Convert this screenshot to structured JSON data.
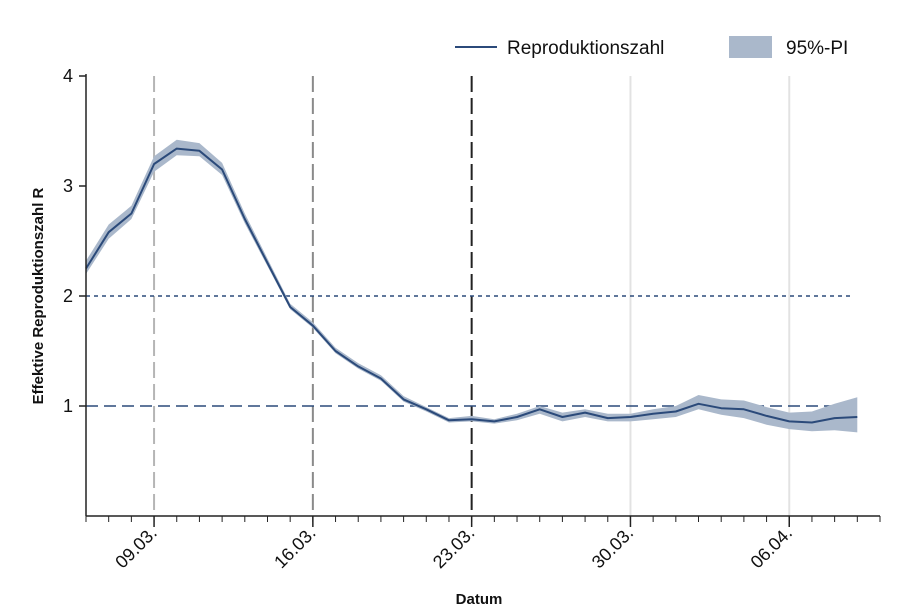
{
  "chart_data": {
    "type": "line",
    "title": "",
    "xlabel": "Datum",
    "ylabel": "Effektive Reproduktionszahl R",
    "ylim": [
      0,
      4
    ],
    "yticks": [
      "1",
      "2",
      "3",
      "4"
    ],
    "xticks": [
      {
        "date": "2020-03-09",
        "label": "09.03."
      },
      {
        "date": "2020-03-16",
        "label": "16.03."
      },
      {
        "date": "2020-03-23",
        "label": "23.03."
      },
      {
        "date": "2020-03-30",
        "label": "30.03."
      },
      {
        "date": "2020-04-06",
        "label": "06.04."
      }
    ],
    "xlim": [
      "2020-03-06",
      "2020-04-10"
    ],
    "x": [
      "2020-03-06",
      "2020-03-07",
      "2020-03-08",
      "2020-03-09",
      "2020-03-10",
      "2020-03-11",
      "2020-03-12",
      "2020-03-13",
      "2020-03-14",
      "2020-03-15",
      "2020-03-16",
      "2020-03-17",
      "2020-03-18",
      "2020-03-19",
      "2020-03-20",
      "2020-03-21",
      "2020-03-22",
      "2020-03-23",
      "2020-03-24",
      "2020-03-25",
      "2020-03-26",
      "2020-03-27",
      "2020-03-28",
      "2020-03-29",
      "2020-03-30",
      "2020-03-31",
      "2020-04-01",
      "2020-04-02",
      "2020-04-03",
      "2020-04-04",
      "2020-04-05",
      "2020-04-06",
      "2020-04-07",
      "2020-04-08",
      "2020-04-09"
    ],
    "series": [
      {
        "name": "Reproduktionszahl",
        "color": "#2b4a7a",
        "values": [
          2.25,
          2.58,
          2.75,
          3.2,
          3.34,
          3.32,
          3.15,
          2.7,
          2.3,
          1.9,
          1.73,
          1.5,
          1.36,
          1.25,
          1.06,
          0.97,
          0.87,
          0.88,
          0.86,
          0.9,
          0.97,
          0.9,
          0.94,
          0.89,
          0.9,
          0.93,
          0.95,
          1.02,
          0.98,
          0.97,
          0.91,
          0.86,
          0.85,
          0.89,
          0.9
        ],
        "lower": [
          2.2,
          2.52,
          2.7,
          3.13,
          3.28,
          3.27,
          3.1,
          2.66,
          2.27,
          1.88,
          1.71,
          1.48,
          1.34,
          1.23,
          1.04,
          0.95,
          0.85,
          0.86,
          0.84,
          0.87,
          0.93,
          0.86,
          0.9,
          0.86,
          0.86,
          0.88,
          0.9,
          0.97,
          0.92,
          0.89,
          0.83,
          0.79,
          0.77,
          0.78,
          0.76
        ],
        "upper": [
          2.32,
          2.65,
          2.82,
          3.27,
          3.42,
          3.39,
          3.21,
          2.75,
          2.34,
          1.93,
          1.76,
          1.53,
          1.39,
          1.28,
          1.09,
          0.99,
          0.89,
          0.91,
          0.88,
          0.93,
          1.0,
          0.94,
          0.97,
          0.93,
          0.93,
          0.97,
          1.0,
          1.1,
          1.06,
          1.05,
          0.99,
          0.94,
          0.95,
          1.02,
          1.08
        ]
      }
    ],
    "band_name": "95%-PI",
    "band_color": "#aab8cb",
    "reference_lines_y": [
      {
        "value": 2,
        "color": "#2b4a7a",
        "style": "dotted"
      },
      {
        "value": 1,
        "color": "#2b4a7a",
        "style": "dashed"
      }
    ],
    "event_lines_x": [
      {
        "date": "2020-03-09",
        "color": "#b5b5b5",
        "style": "dashed"
      },
      {
        "date": "2020-03-16",
        "color": "#8a8a8a",
        "style": "dashed"
      },
      {
        "date": "2020-03-23",
        "color": "#222222",
        "style": "dashed"
      },
      {
        "date": "2020-03-30",
        "color": "#e2e2e2",
        "style": "solid"
      },
      {
        "date": "2020-04-06",
        "color": "#e2e2e2",
        "style": "solid"
      }
    ],
    "grid": false,
    "legend_position": "top-right"
  }
}
